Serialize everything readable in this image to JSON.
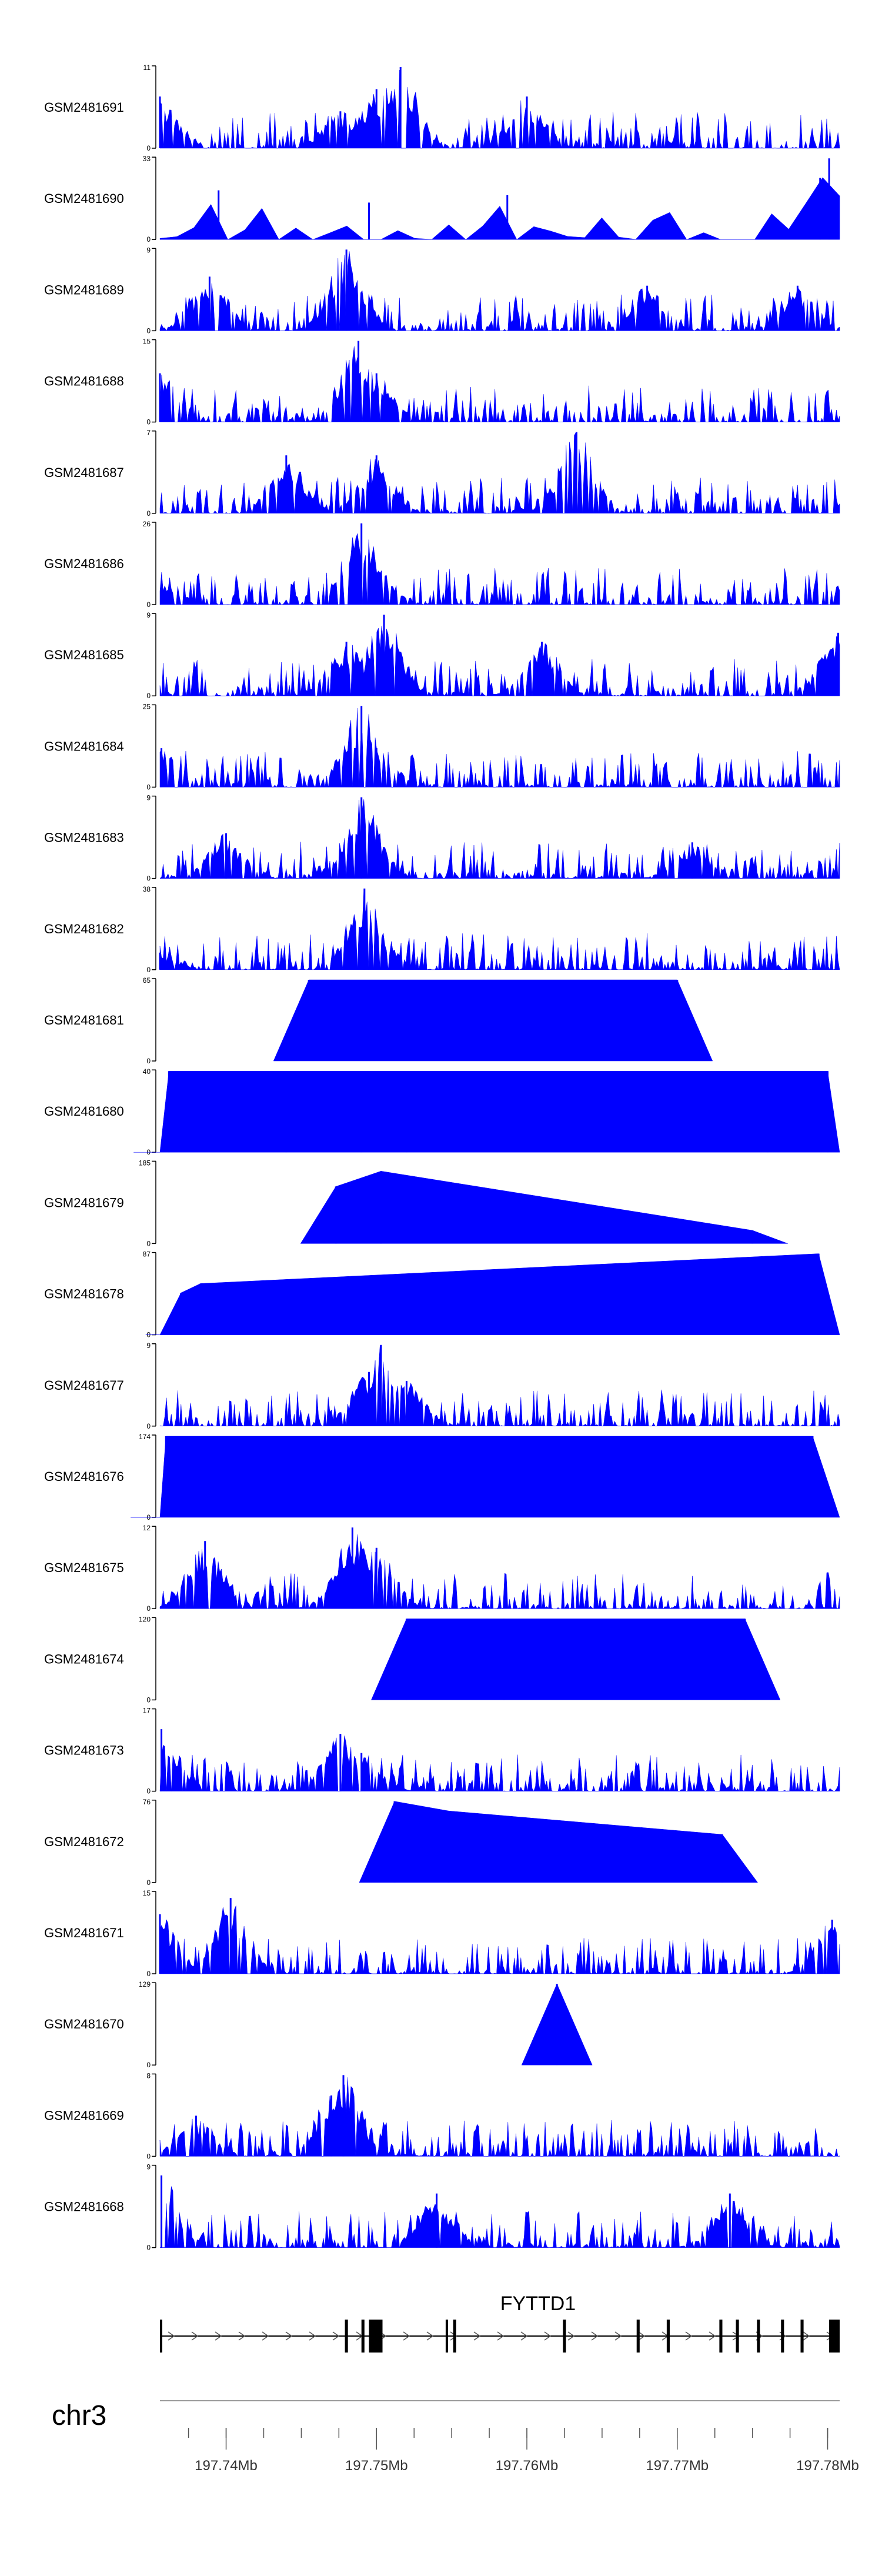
{
  "chart_data": {
    "type": "area",
    "title": "",
    "xlabel": "",
    "ylabel": "",
    "chromosome": "chr3",
    "xlim": [
      197.7356,
      197.7808
    ],
    "x_ticks": [
      "197.74Mb",
      "197.75Mb",
      "197.76Mb",
      "197.77Mb",
      "197.78Mb"
    ],
    "x_tick_values": [
      197.74,
      197.75,
      197.76,
      197.77,
      197.78
    ],
    "colors": {
      "signal": "#0000ff",
      "axis": "#000000",
      "gene": "#000000"
    },
    "gene": {
      "name": "FYTTD1",
      "strand": "+",
      "start": 197.7356,
      "end": 197.7808,
      "exons": [
        [
          197.7356,
          197.7357
        ],
        [
          197.7479,
          197.7481
        ],
        [
          197.749,
          197.7492
        ],
        [
          197.7495,
          197.7504
        ],
        [
          197.7546,
          197.7547
        ],
        [
          197.7551,
          197.7553
        ],
        [
          197.7624,
          197.7626
        ],
        [
          197.7673,
          197.7675
        ],
        [
          197.7693,
          197.7695
        ],
        [
          197.7728,
          197.773
        ],
        [
          197.7739,
          197.7741
        ],
        [
          197.7753,
          197.7755
        ],
        [
          197.7769,
          197.7771
        ],
        [
          197.7782,
          197.7784
        ],
        [
          197.7801,
          197.7808
        ]
      ]
    },
    "tracks": [
      {
        "name": "GSM2481691",
        "ymax": 11,
        "style": "noisy",
        "peaks": [
          [
            197.7356,
            7
          ],
          [
            197.7476,
            5
          ],
          [
            197.75,
            8
          ],
          [
            197.7516,
            11
          ],
          [
            197.76,
            7
          ]
        ]
      },
      {
        "name": "GSM2481690",
        "ymax": 33,
        "style": "spiky",
        "peaks": [
          [
            197.7801,
            33
          ],
          [
            197.7795,
            25
          ],
          [
            197.7395,
            20
          ],
          [
            197.7587,
            18
          ],
          [
            197.7495,
            15
          ]
        ]
      },
      {
        "name": "GSM2481689",
        "ymax": 9,
        "style": "noisy",
        "peaks": [
          [
            197.748,
            9
          ],
          [
            197.7389,
            6
          ],
          [
            197.768,
            5
          ],
          [
            197.778,
            5
          ]
        ]
      },
      {
        "name": "GSM2481688",
        "ymax": 15,
        "style": "noisy",
        "peaks": [
          [
            197.7356,
            9
          ],
          [
            197.7488,
            15
          ],
          [
            197.75,
            9
          ]
        ]
      },
      {
        "name": "GSM2481687",
        "ymax": 7,
        "style": "noisy",
        "peaks": [
          [
            197.7633,
            7
          ],
          [
            197.744,
            5
          ],
          [
            197.75,
            5
          ]
        ]
      },
      {
        "name": "GSM2481686",
        "ymax": 26,
        "style": "noisy",
        "peaks": [
          [
            197.7357,
            7
          ],
          [
            197.749,
            26
          ],
          [
            197.75,
            10
          ]
        ]
      },
      {
        "name": "GSM2481685",
        "ymax": 9,
        "style": "noisy",
        "peaks": [
          [
            197.7505,
            9
          ],
          [
            197.748,
            6
          ],
          [
            197.761,
            6
          ],
          [
            197.7807,
            7
          ]
        ]
      },
      {
        "name": "GSM2481684",
        "ymax": 25,
        "style": "noisy",
        "peaks": [
          [
            197.7357,
            12
          ],
          [
            197.749,
            25
          ],
          [
            197.75,
            12
          ]
        ]
      },
      {
        "name": "GSM2481683",
        "ymax": 9,
        "style": "noisy",
        "peaks": [
          [
            197.749,
            9
          ],
          [
            197.74,
            5
          ],
          [
            197.771,
            4
          ]
        ]
      },
      {
        "name": "GSM2481682",
        "ymax": 38,
        "style": "noisy",
        "peaks": [
          [
            197.7356,
            8
          ],
          [
            197.7492,
            38
          ],
          [
            197.75,
            16
          ]
        ]
      },
      {
        "name": "GSM2481681",
        "ymax": 65,
        "style": "triangles",
        "peaks": [
          [
            197.7455,
            65
          ],
          [
            197.752,
            65
          ],
          [
            197.77,
            65
          ]
        ]
      },
      {
        "name": "GSM2481680",
        "ymax": 40,
        "style": "triangles",
        "peaks": [
          [
            197.7362,
            40
          ],
          [
            197.744,
            40
          ],
          [
            197.749,
            40
          ],
          [
            197.752,
            40
          ],
          [
            197.776,
            40
          ],
          [
            197.78,
            40
          ]
        ]
      },
      {
        "name": "GSM2481679",
        "ymax": 185,
        "style": "triangles",
        "peaks": [
          [
            197.7473,
            130
          ],
          [
            197.7503,
            165
          ],
          [
            197.775,
            30
          ]
        ]
      },
      {
        "name": "GSM2481678",
        "ymax": 87,
        "style": "triangles",
        "peaks": [
          [
            197.7794,
            87
          ],
          [
            197.7383,
            55
          ],
          [
            197.737,
            45
          ]
        ]
      },
      {
        "name": "GSM2481677",
        "ymax": 9,
        "style": "noisy",
        "peaks": [
          [
            197.7503,
            9
          ],
          [
            197.7495,
            6
          ],
          [
            197.752,
            5
          ]
        ]
      },
      {
        "name": "GSM2481676",
        "ymax": 174,
        "style": "triangles",
        "peaks": [
          [
            197.736,
            174
          ],
          [
            197.7708,
            174
          ],
          [
            197.779,
            174
          ]
        ]
      },
      {
        "name": "GSM2481675",
        "ymax": 12,
        "style": "noisy",
        "peaks": [
          [
            197.7484,
            12
          ],
          [
            197.7386,
            10
          ],
          [
            197.75,
            9
          ]
        ]
      },
      {
        "name": "GSM2481674",
        "ymax": 120,
        "style": "triangles",
        "peaks": [
          [
            197.752,
            120
          ],
          [
            197.7585,
            120
          ],
          [
            197.7745,
            120
          ]
        ]
      },
      {
        "name": "GSM2481673",
        "ymax": 17,
        "style": "noisy",
        "peaks": [
          [
            197.7357,
            13
          ],
          [
            197.7476,
            12
          ],
          [
            197.749,
            8
          ]
        ]
      },
      {
        "name": "GSM2481672",
        "ymax": 76,
        "style": "triangles",
        "peaks": [
          [
            197.7512,
            76
          ],
          [
            197.7548,
            67
          ],
          [
            197.773,
            45
          ]
        ]
      },
      {
        "name": "GSM2481671",
        "ymax": 15,
        "style": "noisy",
        "peaks": [
          [
            197.7403,
            14
          ],
          [
            197.7356,
            11
          ],
          [
            197.7803,
            10
          ]
        ]
      },
      {
        "name": "GSM2481670",
        "ymax": 129,
        "style": "triangles",
        "peaks": [
          [
            197.762,
            129
          ]
        ]
      },
      {
        "name": "GSM2481669",
        "ymax": 8,
        "style": "noisy",
        "peaks": [
          [
            197.7478,
            8
          ],
          [
            197.747,
            6
          ],
          [
            197.738,
            4
          ]
        ]
      },
      {
        "name": "GSM2481668",
        "ymax": 9,
        "style": "noisy",
        "peaks": [
          [
            197.7357,
            8
          ],
          [
            197.754,
            6
          ],
          [
            197.7735,
            6
          ]
        ]
      }
    ]
  }
}
